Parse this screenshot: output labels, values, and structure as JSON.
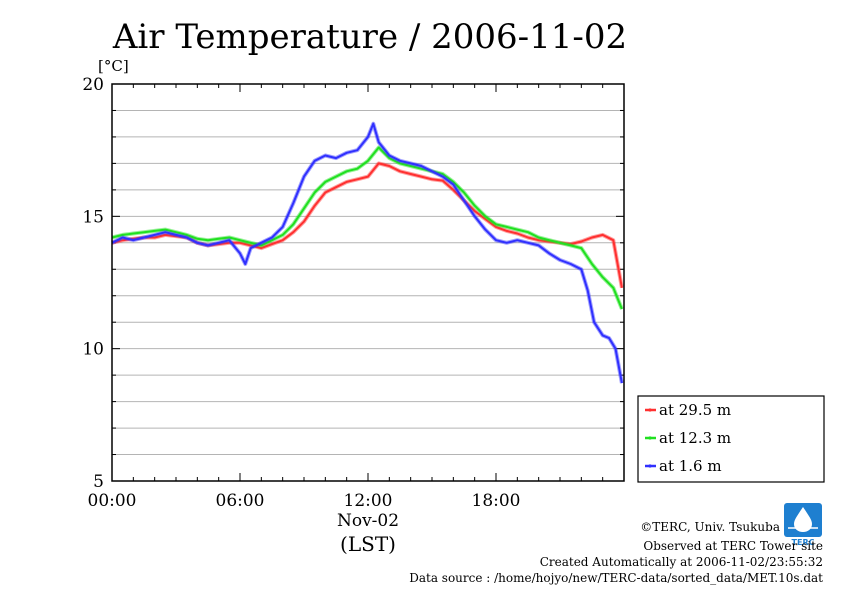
{
  "chart_data": {
    "type": "line",
    "title": "Air Temperature / 2006-11-02",
    "ylabel": "[°C]",
    "xlabel": "(LST)",
    "x_date_label": "Nov-02",
    "ylim": [
      5,
      20
    ],
    "xlim": [
      0,
      24
    ],
    "x_ticks": [
      {
        "value": 0,
        "label": "00:00"
      },
      {
        "value": 6,
        "label": "06:00"
      },
      {
        "value": 12,
        "label": "12:00"
      },
      {
        "value": 18,
        "label": "18:00"
      }
    ],
    "y_ticks": [
      {
        "value": 5,
        "label": "5"
      },
      {
        "value": 10,
        "label": "10"
      },
      {
        "value": 15,
        "label": "15"
      },
      {
        "value": 20,
        "label": "20"
      }
    ],
    "grid": true,
    "legend_position": "right-bottom",
    "series": [
      {
        "name": "at 29.5 m",
        "color": "#ff3030",
        "x": [
          0,
          0.5,
          1,
          1.5,
          2,
          2.5,
          3,
          3.5,
          4,
          4.5,
          5,
          5.5,
          6,
          6.5,
          7,
          7.5,
          8,
          8.5,
          9,
          9.5,
          10,
          10.5,
          11,
          11.5,
          12,
          12.5,
          13,
          13.5,
          14,
          14.5,
          15,
          15.5,
          16,
          16.5,
          17,
          17.5,
          18,
          18.5,
          19,
          19.5,
          20,
          20.5,
          21,
          21.5,
          22,
          22.5,
          23,
          23.5,
          23.9
        ],
        "values": [
          14.0,
          14.1,
          14.15,
          14.2,
          14.2,
          14.3,
          14.25,
          14.2,
          14.0,
          13.9,
          13.95,
          14.0,
          14.0,
          13.9,
          13.8,
          13.95,
          14.1,
          14.4,
          14.8,
          15.4,
          15.9,
          16.1,
          16.3,
          16.4,
          16.5,
          17.0,
          16.9,
          16.7,
          16.6,
          16.5,
          16.4,
          16.35,
          16.0,
          15.6,
          15.2,
          14.9,
          14.6,
          14.45,
          14.35,
          14.2,
          14.1,
          14.05,
          14.0,
          13.95,
          14.05,
          14.2,
          14.3,
          14.1,
          12.3
        ]
      },
      {
        "name": "at 12.3 m",
        "color": "#20e020",
        "x": [
          0,
          0.5,
          1,
          1.5,
          2,
          2.5,
          3,
          3.5,
          4,
          4.5,
          5,
          5.5,
          6,
          6.5,
          7,
          7.5,
          8,
          8.5,
          9,
          9.5,
          10,
          10.5,
          11,
          11.5,
          12,
          12.5,
          13,
          13.5,
          14,
          14.5,
          15,
          15.5,
          16,
          16.5,
          17,
          17.5,
          18,
          18.5,
          19,
          19.5,
          20,
          20.5,
          21,
          21.5,
          22,
          22.5,
          23,
          23.5,
          23.9
        ],
        "values": [
          14.2,
          14.3,
          14.35,
          14.4,
          14.45,
          14.5,
          14.4,
          14.3,
          14.15,
          14.1,
          14.15,
          14.2,
          14.1,
          14.0,
          13.9,
          14.1,
          14.3,
          14.7,
          15.3,
          15.9,
          16.3,
          16.5,
          16.7,
          16.8,
          17.1,
          17.6,
          17.2,
          17.0,
          16.9,
          16.8,
          16.7,
          16.6,
          16.3,
          15.9,
          15.4,
          15.0,
          14.7,
          14.6,
          14.5,
          14.4,
          14.2,
          14.1,
          14.0,
          13.9,
          13.8,
          13.2,
          12.7,
          12.3,
          11.5
        ]
      },
      {
        "name": "at 1.6 m",
        "color": "#3030ff",
        "x": [
          0,
          0.5,
          1,
          1.5,
          2,
          2.5,
          3,
          3.5,
          4,
          4.5,
          5,
          5.5,
          6,
          6.25,
          6.5,
          7,
          7.5,
          8,
          8.5,
          9,
          9.5,
          10,
          10.5,
          11,
          11.5,
          12,
          12.25,
          12.5,
          13,
          13.5,
          14,
          14.5,
          15,
          15.5,
          16,
          16.5,
          17,
          17.5,
          18,
          18.5,
          19,
          19.5,
          20,
          20.5,
          21,
          21.5,
          22,
          22.3,
          22.6,
          23,
          23.3,
          23.6,
          23.9
        ],
        "values": [
          14.0,
          14.2,
          14.1,
          14.2,
          14.3,
          14.4,
          14.3,
          14.2,
          14.0,
          13.9,
          14.0,
          14.1,
          13.6,
          13.2,
          13.8,
          14.0,
          14.2,
          14.6,
          15.5,
          16.5,
          17.1,
          17.3,
          17.2,
          17.4,
          17.5,
          18.0,
          18.5,
          17.8,
          17.3,
          17.1,
          17.0,
          16.9,
          16.7,
          16.5,
          16.2,
          15.6,
          15.0,
          14.5,
          14.1,
          14.0,
          14.1,
          14.0,
          13.9,
          13.6,
          13.35,
          13.2,
          13.0,
          12.2,
          11.0,
          10.5,
          10.4,
          10.0,
          8.7
        ]
      }
    ]
  },
  "credits": {
    "copyright": "©TERC, Univ. Tsukuba",
    "observed": "Observed at TERC Tower site",
    "created": "Created Automatically at 2006-11-02/23:55:32",
    "source": "Data source : /home/hojyo/new/TERC-data/sorted_data/MET.10s.dat",
    "logo_text": "TERC",
    "logo_color": "#1e7fd0"
  }
}
